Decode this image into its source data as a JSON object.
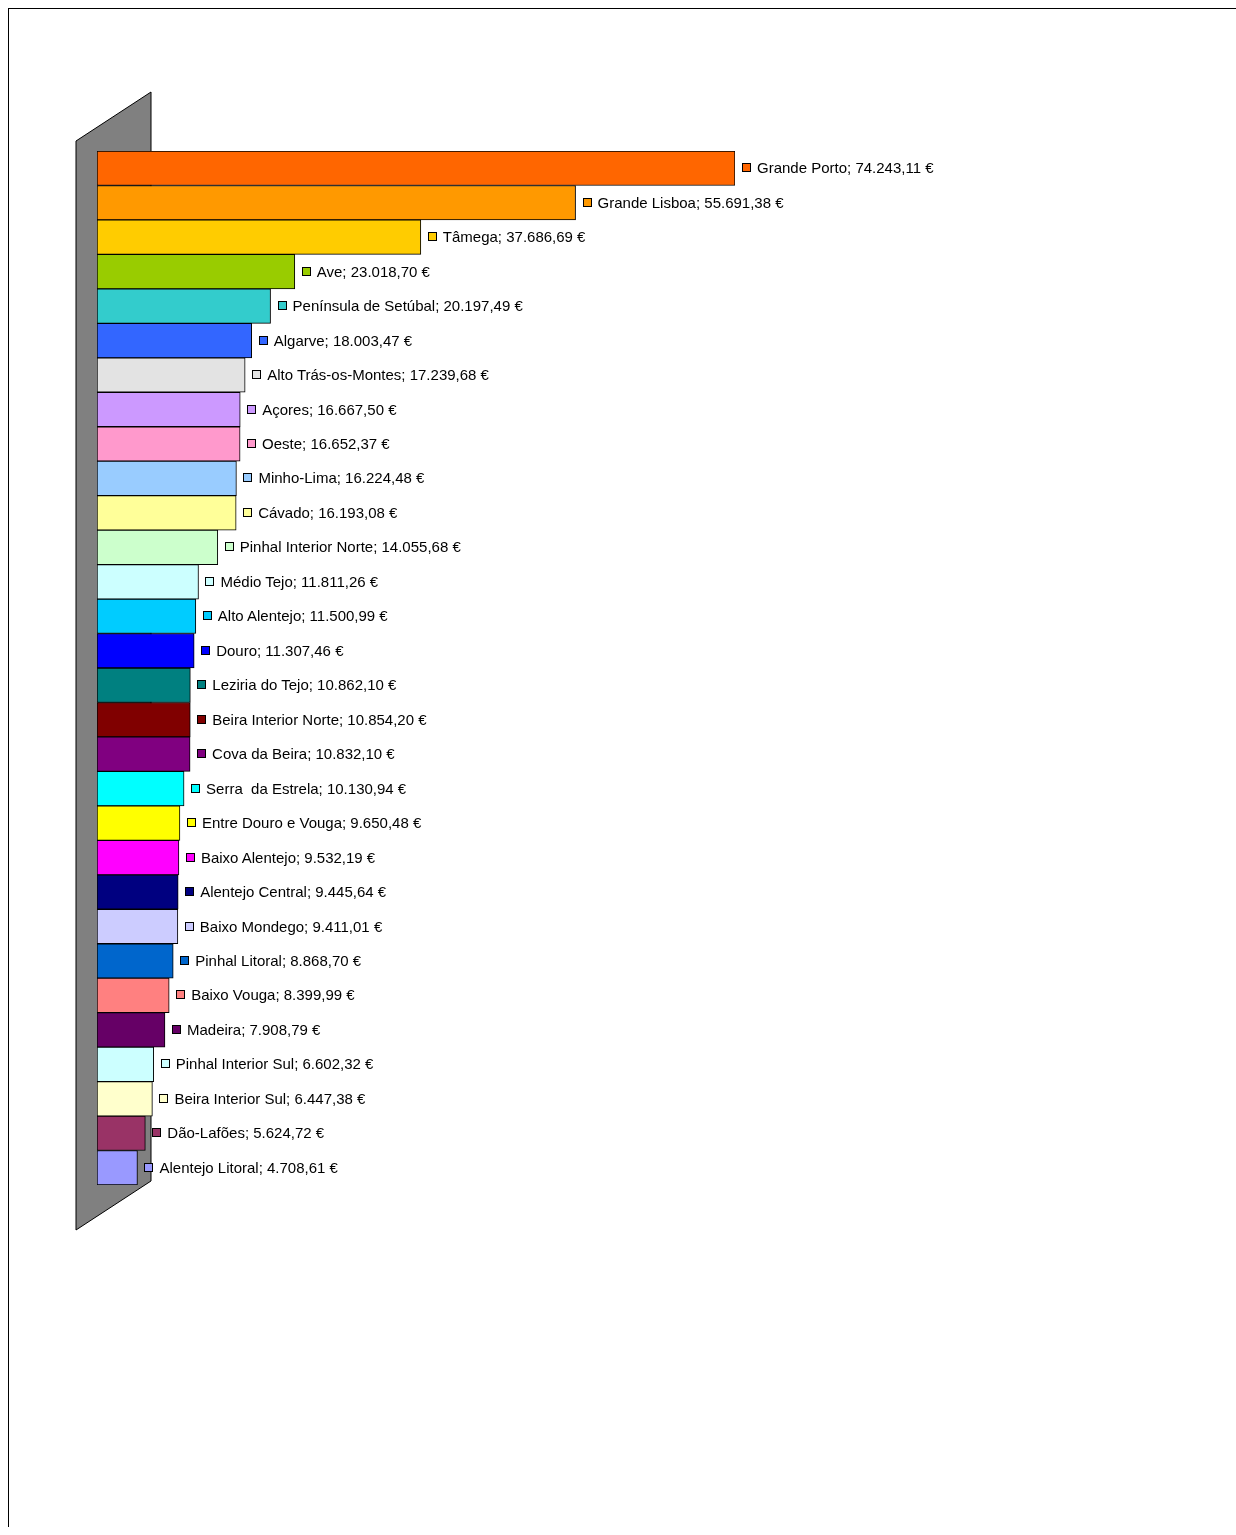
{
  "chart_data": {
    "type": "bar",
    "orientation": "horizontal",
    "categories": [
      null,
      null,
      null,
      null,
      null,
      null,
      null,
      null,
      null,
      null,
      null,
      null,
      null,
      null,
      null,
      null,
      null,
      null,
      null,
      null,
      null,
      null,
      null,
      null,
      null,
      null,
      null,
      null,
      null,
      null
    ],
    "values": [
      74243.11,
      55691.38,
      37686.69,
      23018.7,
      20197.49,
      18003.47,
      17239.68,
      16667.5,
      16652.37,
      16224.48,
      16193.08,
      14055.68,
      11811.26,
      11500.99,
      11307.46,
      10862.1,
      10854.2,
      10832.1,
      10130.94,
      9650.48,
      9532.19,
      9445.64,
      9411.01,
      8868.7,
      8399.99,
      7908.79,
      6602.32,
      6447.38,
      5624.72,
      4708.61
    ],
    "value_labels": [
      "Grande Porto; 74.243,11 €",
      "Grande Lisboa; 55.691,38 €",
      "Tâmega; 37.686,69 €",
      "Ave; 23.018,70 €",
      "Península de Setúbal; 20.197,49 €",
      "Algarve; 18.003,47 €",
      "Alto Trás-os-Montes; 17.239,68 €",
      "Açores; 16.667,50 €",
      "Oeste; 16.652,37 €",
      "Minho-Lima; 16.224,48 €",
      "Cávado; 16.193,08 €",
      "Pinhal Interior Norte; 14.055,68 €",
      "Médio Tejo; 11.811,26 €",
      "Alto Alentejo; 11.500,99 €",
      "Douro; 11.307,46 €",
      "Leziria do Tejo; 10.862,10 €",
      "Beira Interior Norte; 10.854,20 €",
      "Cova da Beira; 10.832,10 €",
      "Serra  da Estrela; 10.130,94 €",
      "Entre Douro e Vouga; 9.650,48 €",
      "Baixo Alentejo; 9.532,19 €",
      "Alentejo Central; 9.445,64 €",
      "Baixo Mondego; 9.411,01 €",
      "Pinhal Litoral; 8.868,70 €",
      "Baixo Vouga; 8.399,99 €",
      "Madeira; 7.908,79 €",
      "Pinhal Interior Sul; 6.602,32 €",
      "Beira Interior Sul; 6.447,38 €",
      "Dão-Lafões; 5.624,72 €",
      "Alentejo Litoral; 4.708,61 €"
    ],
    "colors": [
      "#ff6600",
      "#ff9900",
      "#ffcc00",
      "#99cc00",
      "#33cccc",
      "#3366ff",
      "#e3e3e3",
      "#cc99ff",
      "#ff99cc",
      "#99ccff",
      "#ffff99",
      "#ccffcc",
      "#ccffff",
      "#00ccff",
      "#0000ff",
      "#008080",
      "#800000",
      "#800080",
      "#00ffff",
      "#ffff00",
      "#ff00ff",
      "#000080",
      "#ccccff",
      "#0066cc",
      "#ff8080",
      "#660066",
      "#ccffff",
      "#ffffcc",
      "#993366",
      "#9999ff"
    ]
  }
}
